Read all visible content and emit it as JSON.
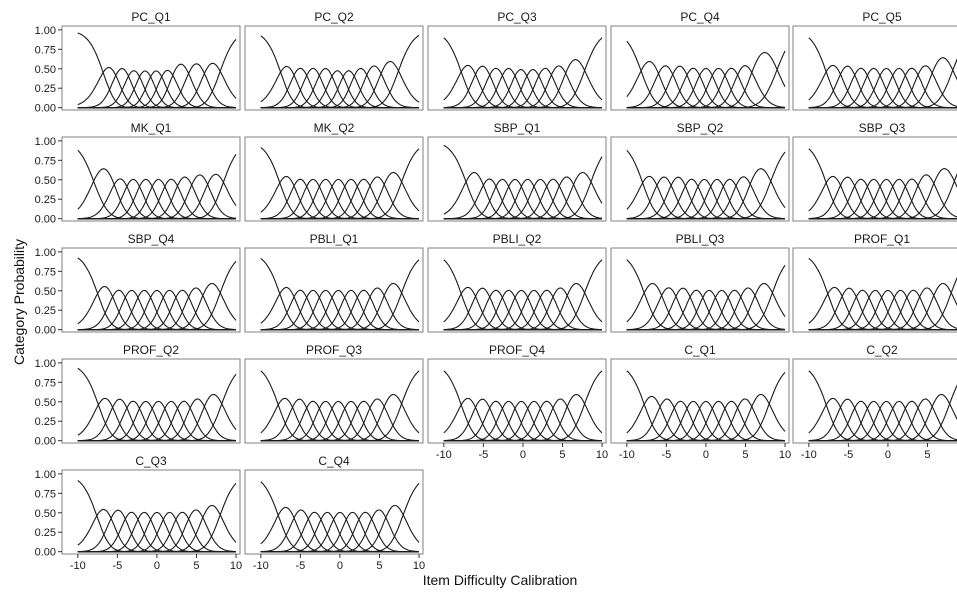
{
  "chart_data": {
    "type": "line",
    "xlabel": "Item Difficulty Calibration",
    "ylabel": "Category Probability",
    "xlim": [
      -12,
      10.5
    ],
    "ylim": [
      -0.03,
      1.05
    ],
    "x_ticks": [
      -10,
      -5,
      0,
      5,
      10
    ],
    "x_tick_labels": [
      "-10",
      "-5",
      "0",
      "5",
      "10"
    ],
    "y_ticks": [
      0,
      0.25,
      0.5,
      0.75,
      1
    ],
    "y_tick_labels": [
      "0.00",
      "0.25",
      "0.50",
      "0.75",
      "1.00"
    ],
    "grid": false,
    "layout": {
      "rows": 5,
      "cols": 5
    },
    "curve_color": "#1a1a1a",
    "panels": [
      {
        "title": "PC_Q1",
        "thresholds": [
          -6.8,
          -5.2,
          -3.6,
          -2.2,
          -0.8,
          0.6,
          2.0,
          4.0,
          6.0,
          8.0
        ]
      },
      {
        "title": "PC_Q2",
        "thresholds": [
          -7.5,
          -5.8,
          -4.2,
          -2.6,
          -1.0,
          0.4,
          1.8,
          3.4,
          5.2,
          7.4
        ]
      },
      {
        "title": "PC_Q3",
        "thresholds": [
          -7.8,
          -6.0,
          -4.2,
          -2.6,
          -1.0,
          0.5,
          2.0,
          3.6,
          5.4,
          7.8
        ]
      },
      {
        "title": "PC_Q4",
        "thresholds": [
          -8.2,
          -6.0,
          -4.2,
          -2.4,
          -0.8,
          0.8,
          2.4,
          4.0,
          5.8,
          9.0
        ]
      },
      {
        "title": "PC_Q5",
        "thresholds": [
          -7.8,
          -6.0,
          -4.2,
          -2.6,
          -1.0,
          0.6,
          2.2,
          3.8,
          5.6,
          8.2
        ]
      },
      {
        "title": "MK_Q1",
        "thresholds": [
          -8.0,
          -5.4,
          -3.8,
          -2.2,
          -0.6,
          1.0,
          2.6,
          4.4,
          6.4,
          8.4
        ]
      },
      {
        "title": "MK_Q2",
        "thresholds": [
          -7.6,
          -5.8,
          -4.2,
          -2.6,
          -1.0,
          0.6,
          2.2,
          3.8,
          5.6,
          7.8
        ]
      },
      {
        "title": "SBP_Q1",
        "thresholds": [
          -7.2,
          -5.0,
          -3.4,
          -1.8,
          -0.2,
          1.4,
          3.0,
          4.6,
          6.4,
          8.6
        ]
      },
      {
        "title": "SBP_Q2",
        "thresholds": [
          -8.0,
          -6.2,
          -4.4,
          -2.6,
          -1.0,
          0.6,
          2.2,
          3.8,
          5.6,
          8.2
        ]
      },
      {
        "title": "SBP_Q3",
        "thresholds": [
          -7.8,
          -6.0,
          -4.2,
          -2.6,
          -1.0,
          0.6,
          2.2,
          3.8,
          5.8,
          8.4
        ]
      },
      {
        "title": "SBP_Q4",
        "thresholds": [
          -7.5,
          -5.6,
          -4.0,
          -2.4,
          -0.8,
          0.8,
          2.4,
          4.0,
          5.8,
          8.0
        ]
      },
      {
        "title": "PBLI_Q1",
        "thresholds": [
          -7.6,
          -5.8,
          -4.2,
          -2.6,
          -1.0,
          0.6,
          2.2,
          3.8,
          5.6,
          7.8
        ]
      },
      {
        "title": "PBLI_Q2",
        "thresholds": [
          -7.8,
          -6.0,
          -4.2,
          -2.6,
          -1.0,
          0.6,
          2.2,
          3.8,
          5.6,
          7.8
        ]
      },
      {
        "title": "PBLI_Q3",
        "thresholds": [
          -7.8,
          -5.6,
          -3.8,
          -2.0,
          -0.4,
          1.2,
          2.8,
          4.4,
          6.2,
          8.4
        ]
      },
      {
        "title": "PROF_Q1",
        "thresholds": [
          -7.6,
          -5.8,
          -4.0,
          -2.4,
          -0.8,
          0.8,
          2.4,
          4.0,
          5.8,
          8.0
        ]
      },
      {
        "title": "PROF_Q2",
        "thresholds": [
          -7.4,
          -5.6,
          -3.8,
          -2.2,
          -0.6,
          1.0,
          2.6,
          4.2,
          6.0,
          8.2
        ]
      },
      {
        "title": "PROF_Q3",
        "thresholds": [
          -7.8,
          -6.0,
          -4.2,
          -2.6,
          -1.0,
          0.6,
          2.2,
          3.8,
          5.6,
          7.8
        ]
      },
      {
        "title": "PROF_Q4",
        "thresholds": [
          -7.8,
          -6.0,
          -4.2,
          -2.6,
          -1.0,
          0.6,
          2.2,
          3.8,
          5.6,
          7.8
        ]
      },
      {
        "title": "C_Q1",
        "thresholds": [
          -7.8,
          -5.8,
          -4.0,
          -2.4,
          -0.8,
          0.8,
          2.4,
          4.0,
          5.8,
          8.0
        ]
      },
      {
        "title": "C_Q2",
        "thresholds": [
          -7.8,
          -6.0,
          -4.2,
          -2.6,
          -1.0,
          0.6,
          2.2,
          3.8,
          5.6,
          7.8
        ]
      },
      {
        "title": "C_Q3",
        "thresholds": [
          -7.6,
          -5.8,
          -4.0,
          -2.4,
          -0.8,
          0.8,
          2.4,
          4.0,
          5.8,
          8.0
        ]
      },
      {
        "title": "C_Q4",
        "thresholds": [
          -7.8,
          -5.8,
          -4.0,
          -2.4,
          -0.8,
          0.8,
          2.4,
          4.0,
          5.8,
          8.0
        ]
      }
    ]
  }
}
